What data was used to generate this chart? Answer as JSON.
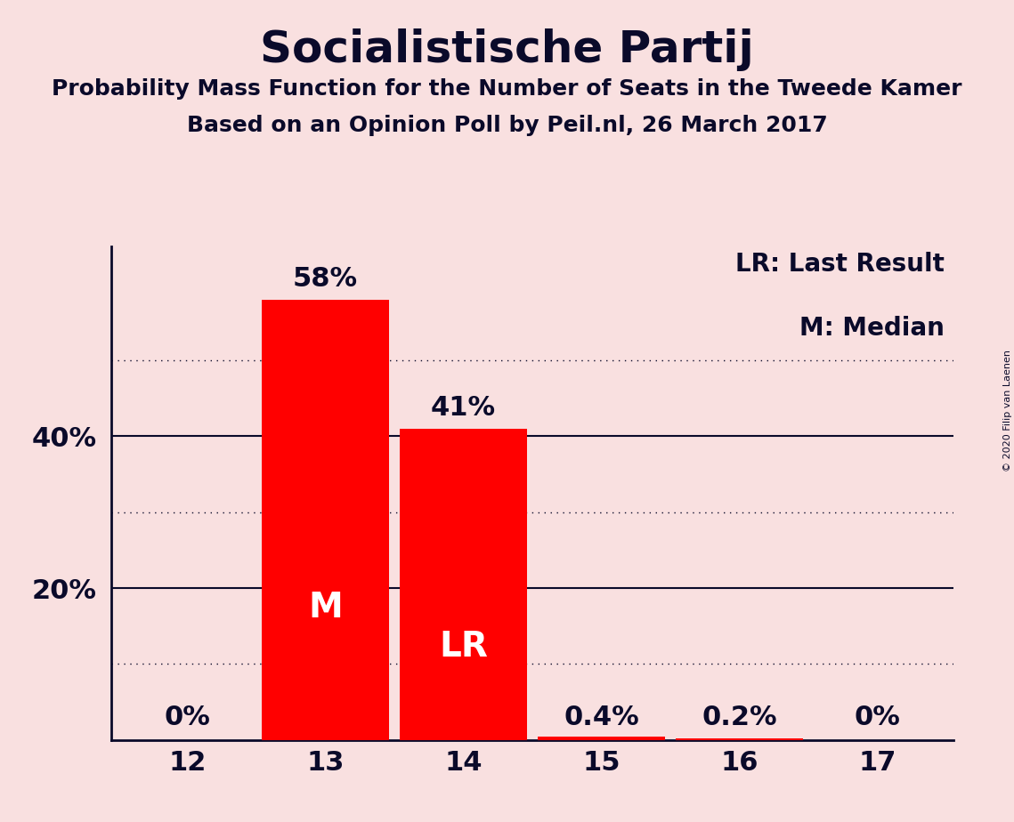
{
  "title": "Socialistische Partij",
  "subtitle1": "Probability Mass Function for the Number of Seats in the Tweede Kamer",
  "subtitle2": "Based on an Opinion Poll by Peil.nl, 26 March 2017",
  "copyright": "© 2020 Filip van Laenen",
  "categories": [
    12,
    13,
    14,
    15,
    16,
    17
  ],
  "values": [
    0.0,
    0.58,
    0.41,
    0.004,
    0.002,
    0.0
  ],
  "bar_color": "#ff0000",
  "background_color": "#f9e0e0",
  "inside_label_color": "#ffffff",
  "text_color": "#0a0a2a",
  "axis_color": "#0a0a2a",
  "value_labels": [
    "0%",
    "58%",
    "41%",
    "0.4%",
    "0.2%",
    "0%"
  ],
  "bar_labels": [
    "",
    "M",
    "LR",
    "",
    "",
    ""
  ],
  "legend_text1": "LR: Last Result",
  "legend_text2": "M: Median",
  "yticks_solid": [
    0.2,
    0.4
  ],
  "yticks_dotted": [
    0.1,
    0.3,
    0.5
  ],
  "ymax": 0.65,
  "bar_width": 0.92,
  "title_fontsize": 36,
  "subtitle_fontsize": 18,
  "tick_fontsize": 22,
  "label_fontsize": 22,
  "inside_label_fontsize": 28,
  "legend_fontsize": 20
}
